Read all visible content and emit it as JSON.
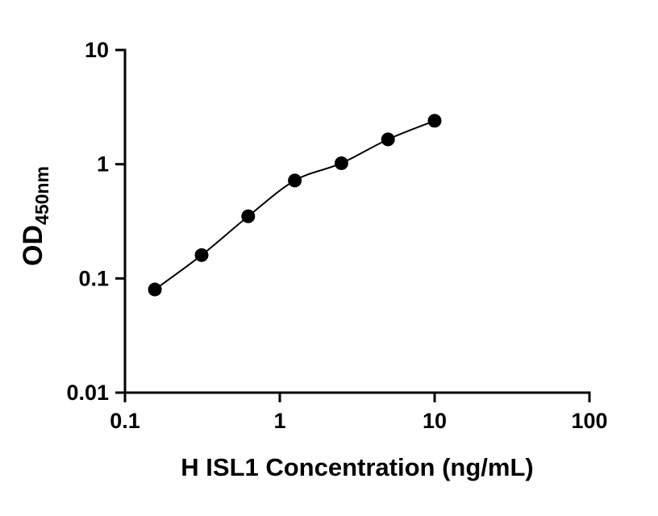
{
  "chart_data": {
    "type": "scatter",
    "title": "",
    "xlabel": "H ISL1 Concentration (ng/mL)",
    "ylabel_main": "OD",
    "ylabel_sub": "450nm",
    "x_scale": "log",
    "y_scale": "log",
    "xlim": [
      0.1,
      100
    ],
    "ylim": [
      0.01,
      10
    ],
    "x_ticks": [
      0.1,
      1,
      10,
      100
    ],
    "x_tick_labels": [
      "0.1",
      "1",
      "10",
      "100"
    ],
    "y_ticks": [
      0.01,
      0.1,
      1,
      10
    ],
    "y_tick_labels": [
      "0.01",
      "0.1",
      "1",
      "10"
    ],
    "points": [
      {
        "x": 0.156,
        "y": 0.08
      },
      {
        "x": 0.3125,
        "y": 0.16
      },
      {
        "x": 0.625,
        "y": 0.35
      },
      {
        "x": 1.25,
        "y": 0.72
      },
      {
        "x": 2.5,
        "y": 1.02
      },
      {
        "x": 5,
        "y": 1.65
      },
      {
        "x": 10,
        "y": 2.4
      }
    ],
    "curve": "smooth-fit",
    "grid": false,
    "legend": null,
    "marker_color": "#000000",
    "line_color": "#000000",
    "axis_color": "#000000",
    "background_color": "#ffffff"
  }
}
